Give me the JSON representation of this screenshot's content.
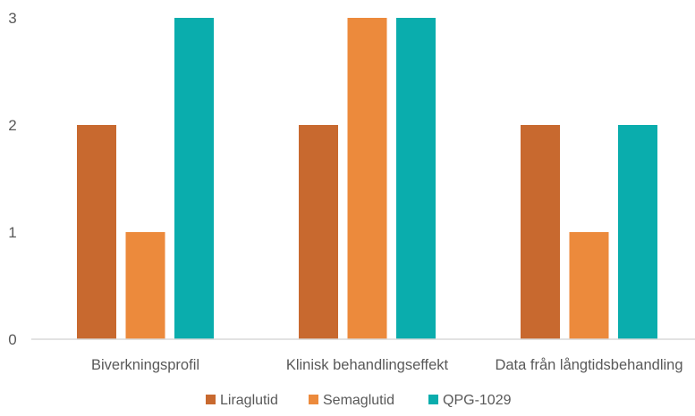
{
  "chart_data": {
    "type": "bar",
    "title": "",
    "xlabel": "",
    "ylabel": "",
    "categories": [
      "Biverkningsprofil",
      "Klinisk behandlingseffekt",
      "Data från långtidsbehandling"
    ],
    "series": [
      {
        "name": "Liraglutid",
        "values": [
          2,
          2,
          2
        ],
        "color": "#C8692F"
      },
      {
        "name": "Semaglutid",
        "values": [
          1,
          3,
          1
        ],
        "color": "#EC8A3C"
      },
      {
        "name": "QPG-1029",
        "values": [
          3,
          3,
          2
        ],
        "color": "#0AADAD"
      }
    ],
    "ylim": [
      0,
      3
    ],
    "yticks": [
      0,
      1,
      2,
      3
    ],
    "grid": false,
    "legend_position": "bottom"
  }
}
